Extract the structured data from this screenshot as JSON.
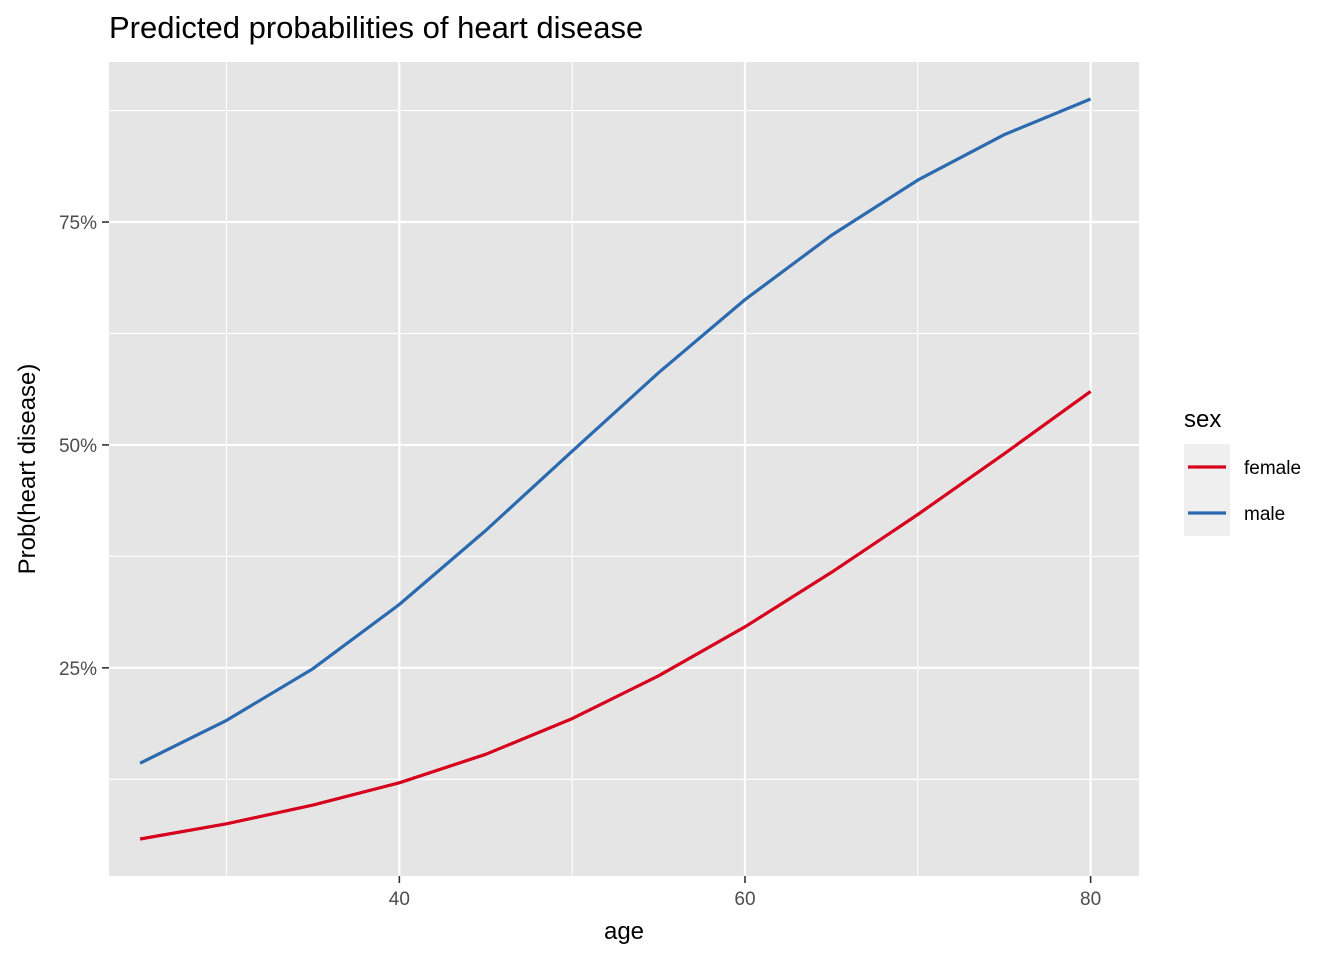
{
  "chart_data": {
    "type": "line",
    "title": "Predicted probabilities of heart disease",
    "xlabel": "age",
    "ylabel": "Prob(heart disease)",
    "x": [
      25,
      30,
      35,
      40,
      45,
      50,
      55,
      60,
      65,
      70,
      75,
      80
    ],
    "series": [
      {
        "name": "female",
        "color": "#d7001c",
        "values": [
          0.058,
          0.075,
          0.096,
          0.121,
          0.153,
          0.193,
          0.241,
          0.296,
          0.357,
          0.422,
          0.49,
          0.56
        ]
      },
      {
        "name": "male",
        "color": "#2b6aaf",
        "values": [
          0.143,
          0.191,
          0.249,
          0.321,
          0.404,
          0.493,
          0.581,
          0.663,
          0.735,
          0.797,
          0.848,
          0.888
        ]
      }
    ],
    "xlim": [
      23.2,
      82.8
    ],
    "ylim": [
      0.0165,
      0.9295
    ],
    "xticks": [
      40,
      60,
      80
    ],
    "xtick_labels": [
      "40",
      "60",
      "80"
    ],
    "yticks": [
      0.25,
      0.5,
      0.75
    ],
    "ytick_labels": [
      "25%",
      "50%",
      "75%"
    ],
    "x_minor_ticks": [
      30,
      50,
      70
    ],
    "y_minor_ticks": [
      0.125,
      0.375,
      0.625,
      0.875
    ],
    "grid": true,
    "panel_background": "#e5e5e5",
    "grid_color": "#ffffff",
    "legend": {
      "title": "sex",
      "position": "right"
    }
  }
}
